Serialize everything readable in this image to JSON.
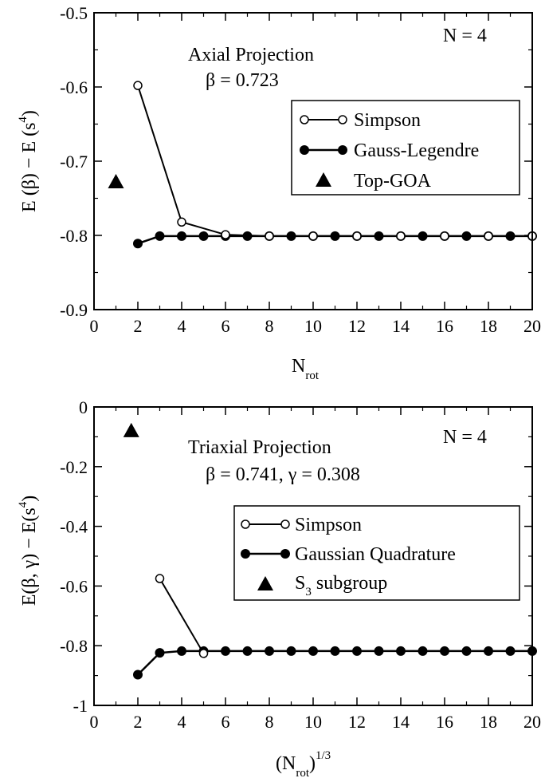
{
  "chart_data": [
    {
      "type": "line",
      "xlim": [
        0,
        20
      ],
      "ylim": [
        -0.9,
        -0.5
      ],
      "xticks": [
        0,
        2,
        4,
        6,
        8,
        10,
        12,
        14,
        16,
        18,
        20
      ],
      "xtick_labels": [
        "0",
        "2",
        "4",
        "6",
        "8",
        "10",
        "12",
        "14",
        "16",
        "18",
        "20"
      ],
      "yticks": [
        -0.9,
        -0.8,
        -0.7,
        -0.6,
        -0.5
      ],
      "ytick_labels": [
        "-0.9",
        "-0.8",
        "-0.7",
        "-0.6",
        "-0.5"
      ],
      "xlabel": {
        "main": "N",
        "sub": "rot"
      },
      "ylabel": {
        "main": "E (β) − E (s",
        "sup": "4",
        "tail": ")"
      },
      "annotations": {
        "title": "Axial Projection",
        "param": "β = 0.723",
        "n": "N = 4"
      },
      "legend_position": "right",
      "grid": false,
      "series": [
        {
          "name": "Simpson",
          "marker": "open-circle",
          "x": [
            2,
            4,
            6,
            8,
            10,
            12,
            14,
            16,
            18,
            20
          ],
          "y": [
            -0.598,
            -0.782,
            -0.799,
            -0.801,
            -0.801,
            -0.801,
            -0.801,
            -0.801,
            -0.801,
            -0.801
          ]
        },
        {
          "name": "Gauss-Legendre",
          "marker": "filled-circle",
          "x": [
            2,
            3,
            4,
            5,
            6,
            7,
            8,
            9,
            10,
            11,
            12,
            13,
            14,
            15,
            16,
            17,
            18,
            19,
            20
          ],
          "y": [
            -0.811,
            -0.801,
            -0.801,
            -0.801,
            -0.801,
            -0.801,
            -0.801,
            -0.801,
            -0.801,
            -0.801,
            -0.801,
            -0.801,
            -0.801,
            -0.801,
            -0.801,
            -0.801,
            -0.801,
            -0.801,
            -0.801
          ]
        },
        {
          "name": "Top-GOA",
          "marker": "filled-triangle",
          "x": [
            1
          ],
          "y": [
            -0.728
          ]
        }
      ]
    },
    {
      "type": "line",
      "xlim": [
        0,
        20
      ],
      "ylim": [
        -1.0,
        0.0
      ],
      "xticks": [
        0,
        2,
        4,
        6,
        8,
        10,
        12,
        14,
        16,
        18,
        20
      ],
      "xtick_labels": [
        "0",
        "2",
        "4",
        "6",
        "8",
        "10",
        "12",
        "14",
        "16",
        "18",
        "20"
      ],
      "yticks": [
        -1.0,
        -0.8,
        -0.6,
        -0.4,
        -0.2,
        0.0
      ],
      "ytick_labels": [
        "-1",
        "-0.8",
        "-0.6",
        "-0.4",
        "-0.2",
        "0"
      ],
      "xlabel": {
        "main": "(N",
        "sub": "rot",
        "mid": ")",
        "sup": "1/3"
      },
      "ylabel": {
        "main": "E(β, γ) − E(s",
        "sup": "4",
        "tail": ")"
      },
      "annotations": {
        "title": "Triaxial Projection",
        "param": "β = 0.741, γ = 0.308",
        "n": "N = 4"
      },
      "legend_position": "right",
      "grid": false,
      "series": [
        {
          "name": "Simpson",
          "marker": "open-circle",
          "x": [
            3,
            5
          ],
          "y": [
            -0.575,
            -0.826
          ]
        },
        {
          "name": "Gaussian Quadrature",
          "marker": "filled-circle",
          "x": [
            2,
            3,
            4,
            5,
            6,
            7,
            8,
            9,
            10,
            11,
            12,
            13,
            14,
            15,
            16,
            17,
            18,
            19,
            20
          ],
          "y": [
            -0.897,
            -0.824,
            -0.818,
            -0.818,
            -0.818,
            -0.818,
            -0.818,
            -0.818,
            -0.818,
            -0.818,
            -0.818,
            -0.818,
            -0.818,
            -0.818,
            -0.818,
            -0.818,
            -0.818,
            -0.818,
            -0.818
          ]
        },
        {
          "name": "S",
          "name_sub": "3",
          "name_tail": " subgroup",
          "marker": "filled-triangle",
          "x": [
            1.7
          ],
          "y": [
            -0.08
          ]
        }
      ]
    }
  ]
}
